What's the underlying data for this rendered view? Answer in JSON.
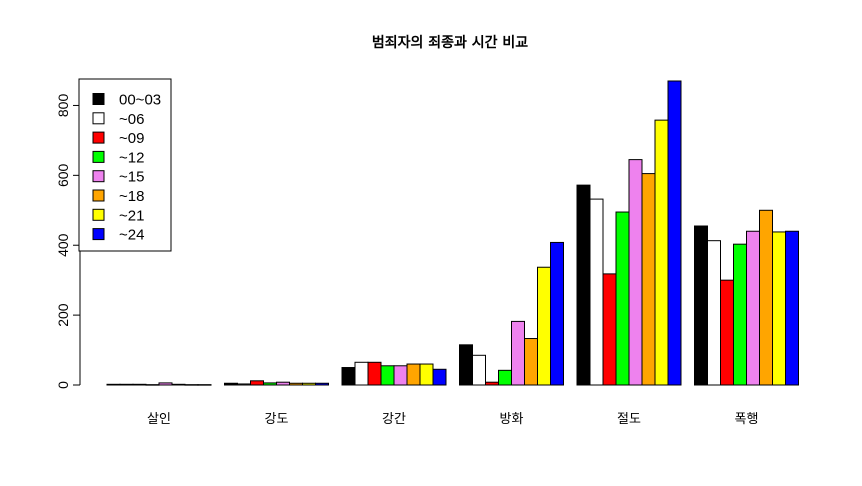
{
  "chart_data": {
    "type": "bar",
    "title": "범죄자의 죄종과 시간 비교",
    "xlabel": "",
    "ylabel": "",
    "categories": [
      "살인",
      "강도",
      "강간",
      "방화",
      "절도",
      "폭행"
    ],
    "ylim": [
      0,
      880
    ],
    "yticks": [
      0,
      200,
      400,
      600,
      800
    ],
    "grid": false,
    "legend_position": "top-left",
    "series": [
      {
        "name": "00~03",
        "color": "#000000",
        "values": [
          2,
          5,
          50,
          115,
          572,
          455
        ]
      },
      {
        "name": "~06",
        "color": "#ffffff",
        "values": [
          2,
          3,
          65,
          85,
          532,
          413
        ]
      },
      {
        "name": "~09",
        "color": "#ff0000",
        "values": [
          2,
          12,
          65,
          8,
          318,
          300
        ]
      },
      {
        "name": "~12",
        "color": "#00ff00",
        "values": [
          1,
          6,
          55,
          42,
          495,
          403
        ]
      },
      {
        "name": "~15",
        "color": "#ee82ee",
        "values": [
          6,
          8,
          55,
          182,
          645,
          440
        ]
      },
      {
        "name": "~18",
        "color": "#ffa500",
        "values": [
          2,
          5,
          60,
          133,
          605,
          500
        ]
      },
      {
        "name": "~21",
        "color": "#ffff00",
        "values": [
          1,
          5,
          60,
          337,
          758,
          438
        ]
      },
      {
        "name": "~24",
        "color": "#0000ff",
        "values": [
          1,
          5,
          45,
          408,
          870,
          440
        ]
      }
    ]
  }
}
